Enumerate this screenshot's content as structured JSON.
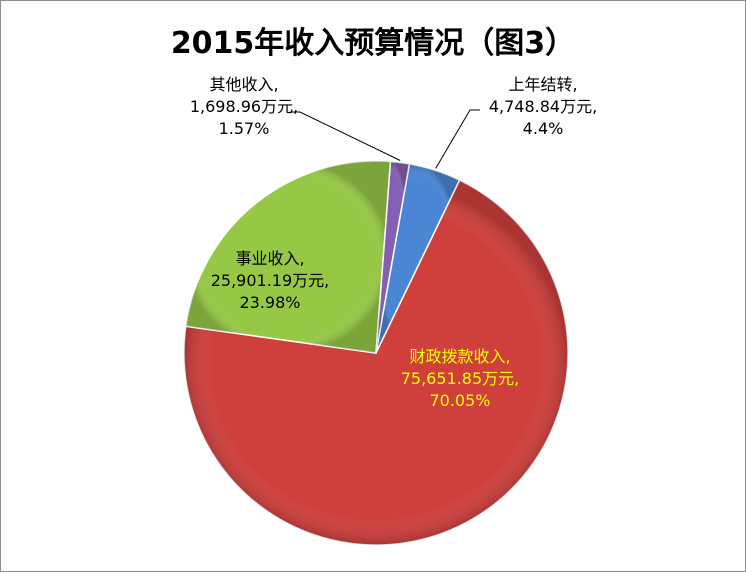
{
  "chart_data": {
    "type": "pie",
    "title": "2015年收入预算情况（图3）",
    "unit": "万元",
    "slices": [
      {
        "name": "上年结转",
        "value": 4748.84,
        "value_text": "4,748.84万元",
        "percent": 4.4,
        "percent_text": "4.4%",
        "color": "#4a86d4",
        "label_color": "#000000"
      },
      {
        "name": "财政拨款收入",
        "value": 75651.85,
        "value_text": "75,651.85万元",
        "percent": 70.05,
        "percent_text": "70.05%",
        "color": "#cf3f3c",
        "label_color": "#ffff00"
      },
      {
        "name": "事业收入",
        "value": 25901.19,
        "value_text": "25,901.19万元",
        "percent": 23.98,
        "percent_text": "23.98%",
        "color": "#96c846",
        "label_color": "#000000"
      },
      {
        "name": "其他收入",
        "value": 1698.96,
        "value_text": "1,698.96万元",
        "percent": 1.57,
        "percent_text": "1.57%",
        "color": "#8460b4",
        "label_color": "#000000"
      }
    ]
  }
}
